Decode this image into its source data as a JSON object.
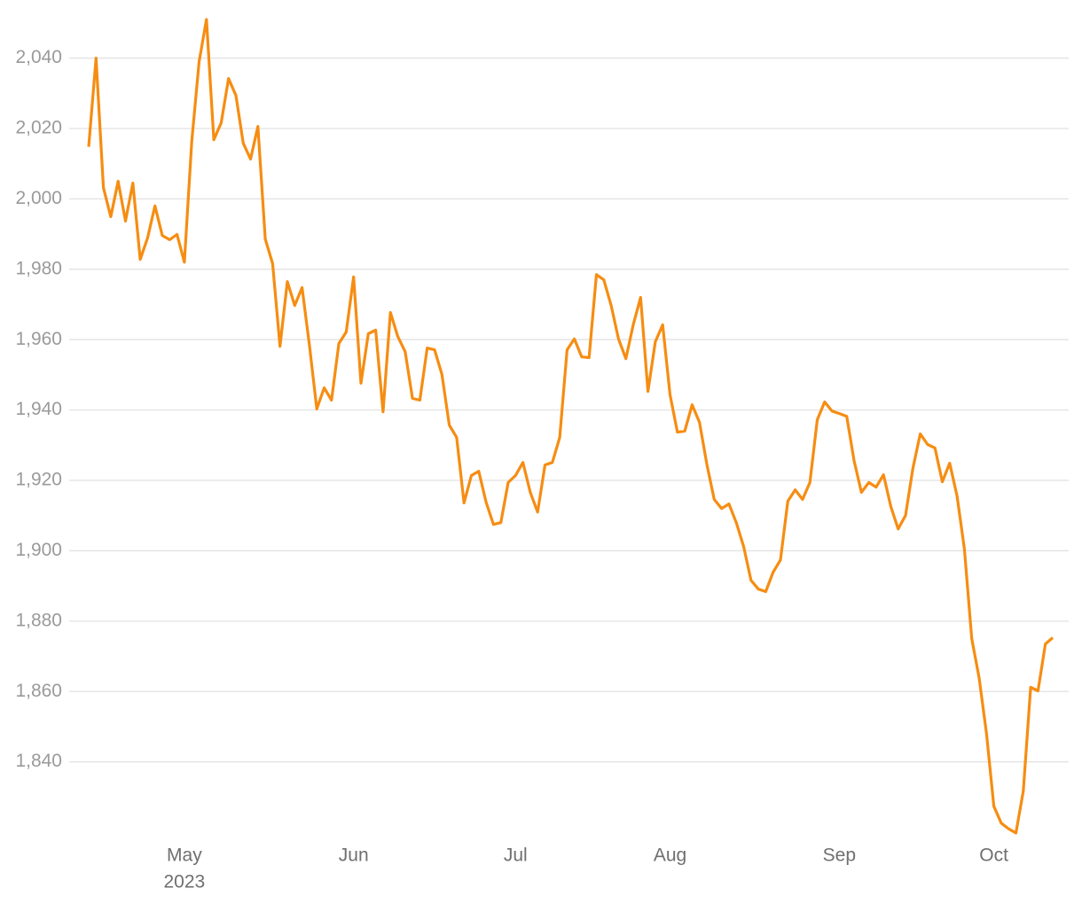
{
  "chart_data": {
    "type": "line",
    "year_label": "2023",
    "categories": [
      null,
      null,
      null,
      null,
      null,
      null,
      null,
      null,
      null,
      null,
      null,
      null,
      null,
      "May",
      null,
      null,
      null,
      null,
      null,
      null,
      null,
      null,
      null,
      null,
      null,
      null,
      null,
      null,
      null,
      null,
      null,
      null,
      null,
      null,
      null,
      null,
      "Jun",
      null,
      null,
      null,
      null,
      null,
      null,
      null,
      null,
      null,
      null,
      null,
      null,
      null,
      null,
      null,
      null,
      null,
      null,
      null,
      null,
      null,
      "Jul",
      null,
      null,
      null,
      null,
      null,
      null,
      null,
      null,
      null,
      null,
      null,
      null,
      null,
      null,
      null,
      null,
      null,
      null,
      null,
      null,
      "Aug",
      null,
      null,
      null,
      null,
      null,
      null,
      null,
      null,
      null,
      null,
      null,
      null,
      null,
      null,
      null,
      null,
      null,
      null,
      null,
      null,
      null,
      null,
      "Sep",
      null,
      null,
      null,
      null,
      null,
      null,
      null,
      null,
      null,
      null,
      null,
      null,
      null,
      null,
      null,
      null,
      null,
      null,
      null,
      null,
      "Oct",
      null,
      null,
      null,
      null,
      null,
      null,
      null,
      null
    ],
    "series": [
      {
        "color": "#f68d12",
        "values": [
          2014.8,
          2040,
          2003.2,
          1994.9,
          2005,
          1993.7,
          2004.5,
          1982.8,
          1988.9,
          1998,
          1989.6,
          1988.4,
          1989.9,
          1982,
          2016.3,
          2039,
          2051,
          2016.8,
          2021.6,
          2034.2,
          2029.4,
          2015.8,
          2011.3,
          2020.6,
          1988.6,
          1981.6,
          1958.1,
          1976.5,
          1969.7,
          1974.8,
          1958.4,
          1940.3,
          1946.3,
          1942.8,
          1958.9,
          1962.2,
          1977.8,
          1947.6,
          1961.7,
          1962.7,
          1939.5,
          1967.7,
          1960.9,
          1956.6,
          1943.3,
          1942.8,
          1957.6,
          1957.1,
          1950.1,
          1935.7,
          1932.2,
          1913.6,
          1921.4,
          1922.6,
          1913.8,
          1907.5,
          1908,
          1919.4,
          1921.4,
          1925.1,
          1916.6,
          1911,
          1924.4,
          1925.1,
          1932.2,
          1957.1,
          1960.2,
          1955.1,
          1954.9,
          1978.5,
          1977,
          1969.7,
          1960.2,
          1954.6,
          1964.2,
          1972,
          1945.3,
          1959.4,
          1964.2,
          1944.3,
          1933.7,
          1934,
          1941.5,
          1936.5,
          1924.6,
          1914.6,
          1912,
          1913.3,
          1908,
          1901.2,
          1891.6,
          1889.1,
          1888.4,
          1893.9,
          1897.4,
          1914.1,
          1917.3,
          1914.6,
          1919.4,
          1937.2,
          1942.3,
          1939.7,
          1939,
          1938.2,
          1925.6,
          1916.6,
          1919.4,
          1918.1,
          1921.6,
          1912.5,
          1906.2,
          1910,
          1923.4,
          1933.2,
          1930.2,
          1929.2,
          1919.6,
          1924.9,
          1915.6,
          1900.5,
          1875,
          1863.9,
          1848.1,
          1827.4,
          1822.6,
          1821,
          1819.8,
          1831.7,
          1861.2,
          1860.2,
          1873.5,
          1875.3
        ]
      }
    ],
    "ylim": [
      1818,
      2054
    ],
    "yticks": [
      {
        "value": 1840,
        "label": "1,840"
      },
      {
        "value": 1860,
        "label": "1,860"
      },
      {
        "value": 1880,
        "label": "1,880"
      },
      {
        "value": 1900,
        "label": "1,900"
      },
      {
        "value": 1920,
        "label": "1,920"
      },
      {
        "value": 1940,
        "label": "1,940"
      },
      {
        "value": 1960,
        "label": "1,960"
      },
      {
        "value": 1980,
        "label": "1,980"
      },
      {
        "value": 2000,
        "label": "2,000"
      },
      {
        "value": 2020,
        "label": "2,020"
      },
      {
        "value": 2040,
        "label": "2,040"
      }
    ],
    "grid": true
  }
}
